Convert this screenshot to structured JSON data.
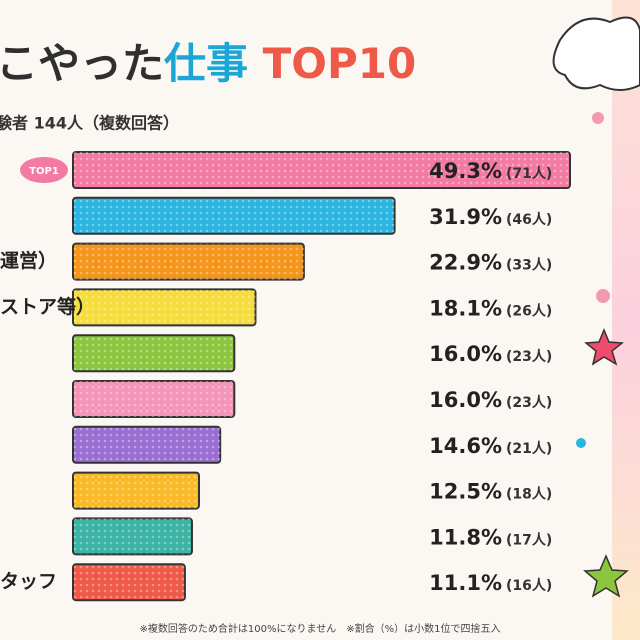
{
  "chart_data": {
    "type": "hbar",
    "title": [
      {
        "text": "こやった",
        "color": "#2f2f2f"
      },
      {
        "text": "仕事",
        "color": "#1aa7d8"
      },
      {
        "text": " TOP10",
        "color": "#ef5a48"
      }
    ],
    "subtitle": "験者 144人（複数回答）",
    "badge": "TOP1",
    "categories": [
      null,
      null,
      "運営）",
      "ストア等）",
      null,
      null,
      null,
      null,
      null,
      "タッフ"
    ],
    "values": [
      49.3,
      31.9,
      22.9,
      18.1,
      16.0,
      16.0,
      14.6,
      12.5,
      11.8,
      11.1
    ],
    "value_labels": [
      "49.3%",
      "31.9%",
      "22.9%",
      "18.1%",
      "16.0%",
      "16.0%",
      "14.6%",
      "12.5%",
      "11.8%",
      "11.1%"
    ],
    "count_labels": [
      "(71人)",
      "(46人)",
      "(33人)",
      "(26人)",
      "(23人)",
      "(23人)",
      "(21人)",
      "(18人)",
      "(17人)",
      "(16人)"
    ],
    "colors": [
      "#f27aa3",
      "#2bb5e0",
      "#f5951c",
      "#f6dc3c",
      "#8cc63f",
      "#f494b6",
      "#9a6ed2",
      "#f9b928",
      "#3bb3a5",
      "#ef5a48"
    ],
    "footnote": "※複数回答のため合計は100%になりません　※割合（%）は小数1位で四捨五入"
  }
}
